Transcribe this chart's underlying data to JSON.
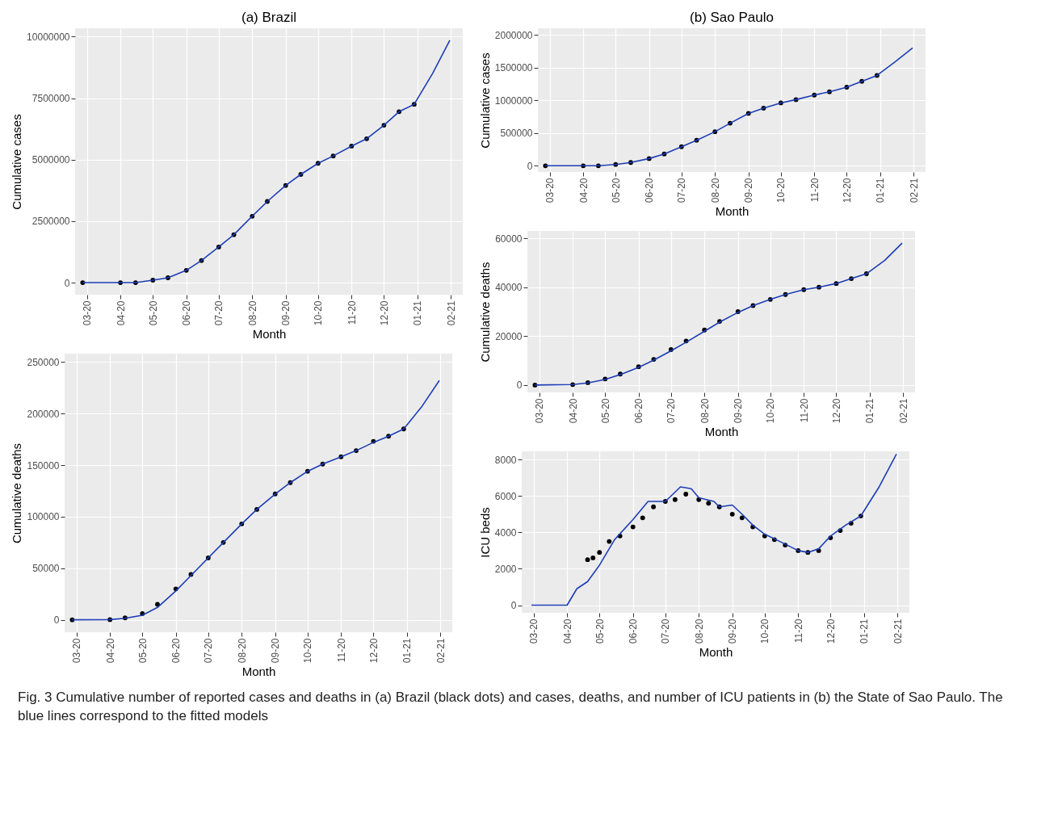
{
  "chart_data": [
    {
      "type": "scatter",
      "title": "(a) Brazil",
      "xlabel": "Month",
      "ylabel": "Cumulative cases",
      "grid": true,
      "xlim": [
        "2020-02-19",
        "2021-02-12"
      ],
      "ylim": [
        -490000,
        10340000
      ],
      "xticks": [
        {
          "value": "2020-03-01",
          "label": "03-20"
        },
        {
          "value": "2020-04-01",
          "label": "04-20"
        },
        {
          "value": "2020-05-01",
          "label": "05-20"
        },
        {
          "value": "2020-06-01",
          "label": "06-20"
        },
        {
          "value": "2020-07-01",
          "label": "07-20"
        },
        {
          "value": "2020-08-01",
          "label": "08-20"
        },
        {
          "value": "2020-09-01",
          "label": "09-20"
        },
        {
          "value": "2020-10-01",
          "label": "10-20"
        },
        {
          "value": "2020-11-01",
          "label": "11-20"
        },
        {
          "value": "2020-12-01",
          "label": "12-20"
        },
        {
          "value": "2021-01-01",
          "label": "01-21"
        },
        {
          "value": "2021-02-01",
          "label": "02-21"
        }
      ],
      "yticks": [
        0,
        2500000,
        5000000,
        7500000,
        10000000
      ],
      "series": [
        {
          "type": "scatter",
          "color": "#000000",
          "x": [
            "2020-02-26",
            "2020-04-01",
            "2020-04-15",
            "2020-05-01",
            "2020-05-15",
            "2020-06-01",
            "2020-06-15",
            "2020-07-01",
            "2020-07-15",
            "2020-08-01",
            "2020-08-15",
            "2020-09-01",
            "2020-09-15",
            "2020-10-01",
            "2020-10-15",
            "2020-11-01",
            "2020-11-15",
            "2020-12-01",
            "2020-12-15",
            "2020-12-29"
          ],
          "values": [
            0,
            0,
            0,
            100000,
            200000,
            500000,
            900000,
            1450000,
            1950000,
            2700000,
            3300000,
            3950000,
            4400000,
            4850000,
            5150000,
            5550000,
            5850000,
            6400000,
            6950000,
            7250000
          ]
        },
        {
          "type": "line",
          "color": "#1d3db5",
          "x": [
            "2020-02-26",
            "2020-04-01",
            "2020-04-15",
            "2020-05-01",
            "2020-05-15",
            "2020-06-01",
            "2020-06-15",
            "2020-07-01",
            "2020-07-15",
            "2020-08-01",
            "2020-08-15",
            "2020-09-01",
            "2020-09-15",
            "2020-10-01",
            "2020-10-15",
            "2020-11-01",
            "2020-11-15",
            "2020-12-01",
            "2020-12-15",
            "2020-12-29",
            "2021-01-15",
            "2021-01-31"
          ],
          "values": [
            0,
            0,
            0,
            100000,
            200000,
            500000,
            900000,
            1450000,
            1950000,
            2700000,
            3300000,
            3950000,
            4400000,
            4850000,
            5150000,
            5550000,
            5850000,
            6400000,
            6950000,
            7250000,
            8500000,
            9850000
          ]
        }
      ]
    },
    {
      "type": "scatter",
      "xlabel": "Month",
      "ylabel": "Cumulative deaths",
      "grid": true,
      "xlim": [
        "2020-02-19",
        "2021-02-12"
      ],
      "ylim": [
        -12000,
        258000
      ],
      "xticks": [
        {
          "value": "2020-03-01",
          "label": "03-20"
        },
        {
          "value": "2020-04-01",
          "label": "04-20"
        },
        {
          "value": "2020-05-01",
          "label": "05-20"
        },
        {
          "value": "2020-06-01",
          "label": "06-20"
        },
        {
          "value": "2020-07-01",
          "label": "07-20"
        },
        {
          "value": "2020-08-01",
          "label": "08-20"
        },
        {
          "value": "2020-09-01",
          "label": "09-20"
        },
        {
          "value": "2020-10-01",
          "label": "10-20"
        },
        {
          "value": "2020-11-01",
          "label": "11-20"
        },
        {
          "value": "2020-12-01",
          "label": "12-20"
        },
        {
          "value": "2021-01-01",
          "label": "01-21"
        },
        {
          "value": "2021-02-01",
          "label": "02-21"
        }
      ],
      "yticks": [
        0,
        50000,
        100000,
        150000,
        200000,
        250000
      ],
      "series": [
        {
          "type": "scatter",
          "color": "#000000",
          "x": [
            "2020-02-26",
            "2020-04-01",
            "2020-04-15",
            "2020-05-01",
            "2020-05-15",
            "2020-06-01",
            "2020-06-15",
            "2020-07-01",
            "2020-07-15",
            "2020-08-01",
            "2020-08-15",
            "2020-09-01",
            "2020-09-15",
            "2020-10-01",
            "2020-10-15",
            "2020-11-01",
            "2020-11-15",
            "2020-12-01",
            "2020-12-15",
            "2020-12-29"
          ],
          "values": [
            0,
            200,
            1900,
            6000,
            15000,
            30000,
            44000,
            60000,
            75000,
            93000,
            107000,
            122000,
            133000,
            144000,
            151000,
            158000,
            164000,
            173000,
            178000,
            185000
          ]
        },
        {
          "type": "line",
          "color": "#1d3db5",
          "x": [
            "2020-02-26",
            "2020-04-01",
            "2020-04-15",
            "2020-05-01",
            "2020-05-15",
            "2020-06-01",
            "2020-06-15",
            "2020-07-01",
            "2020-07-15",
            "2020-08-01",
            "2020-08-15",
            "2020-09-01",
            "2020-09-15",
            "2020-10-01",
            "2020-10-15",
            "2020-11-01",
            "2020-11-15",
            "2020-12-01",
            "2020-12-15",
            "2020-12-29",
            "2021-01-15",
            "2021-01-31"
          ],
          "values": [
            0,
            200,
            1500,
            4500,
            12000,
            28000,
            43000,
            60000,
            75000,
            93000,
            107000,
            122000,
            133000,
            144000,
            151000,
            158000,
            164000,
            172000,
            178000,
            185000,
            207000,
            232000
          ]
        }
      ]
    },
    {
      "type": "scatter",
      "title": "(b) Sao Paulo",
      "xlabel": "Month",
      "ylabel": "Cumulative cases",
      "grid": true,
      "xlim": [
        "2020-02-19",
        "2021-02-12"
      ],
      "ylim": [
        -95000,
        2100000
      ],
      "xticks": [
        {
          "value": "2020-03-01",
          "label": "03-20"
        },
        {
          "value": "2020-04-01",
          "label": "04-20"
        },
        {
          "value": "2020-05-01",
          "label": "05-20"
        },
        {
          "value": "2020-06-01",
          "label": "06-20"
        },
        {
          "value": "2020-07-01",
          "label": "07-20"
        },
        {
          "value": "2020-08-01",
          "label": "08-20"
        },
        {
          "value": "2020-09-01",
          "label": "09-20"
        },
        {
          "value": "2020-10-01",
          "label": "10-20"
        },
        {
          "value": "2020-11-01",
          "label": "11-20"
        },
        {
          "value": "2020-12-01",
          "label": "12-20"
        },
        {
          "value": "2021-01-01",
          "label": "01-21"
        },
        {
          "value": "2021-02-01",
          "label": "02-21"
        }
      ],
      "yticks": [
        0,
        500000,
        1000000,
        1500000,
        2000000
      ],
      "series": [
        {
          "type": "scatter",
          "color": "#000000",
          "x": [
            "2020-02-26",
            "2020-04-01",
            "2020-04-15",
            "2020-05-01",
            "2020-05-15",
            "2020-06-01",
            "2020-06-15",
            "2020-07-01",
            "2020-07-15",
            "2020-08-01",
            "2020-08-15",
            "2020-09-01",
            "2020-09-15",
            "2020-10-01",
            "2020-10-15",
            "2020-11-01",
            "2020-11-15",
            "2020-12-01",
            "2020-12-15",
            "2020-12-29"
          ],
          "values": [
            0,
            0,
            0,
            20000,
            50000,
            110000,
            180000,
            290000,
            390000,
            520000,
            650000,
            800000,
            880000,
            960000,
            1010000,
            1080000,
            1130000,
            1200000,
            1290000,
            1380000
          ]
        },
        {
          "type": "line",
          "color": "#1d3db5",
          "x": [
            "2020-02-26",
            "2020-04-01",
            "2020-04-15",
            "2020-05-01",
            "2020-05-15",
            "2020-06-01",
            "2020-06-15",
            "2020-07-01",
            "2020-07-15",
            "2020-08-01",
            "2020-08-15",
            "2020-09-01",
            "2020-09-15",
            "2020-10-01",
            "2020-10-15",
            "2020-11-01",
            "2020-11-15",
            "2020-12-01",
            "2020-12-15",
            "2020-12-29",
            "2021-01-15",
            "2021-01-31"
          ],
          "values": [
            0,
            0,
            0,
            20000,
            50000,
            110000,
            180000,
            290000,
            390000,
            520000,
            650000,
            800000,
            880000,
            960000,
            1010000,
            1080000,
            1130000,
            1200000,
            1290000,
            1380000,
            1590000,
            1800000
          ]
        }
      ]
    },
    {
      "type": "scatter",
      "xlabel": "Month",
      "ylabel": "Cumulative deaths",
      "grid": true,
      "xlim": [
        "2020-02-19",
        "2021-02-12"
      ],
      "ylim": [
        -3000,
        63000
      ],
      "xticks": [
        {
          "value": "2020-03-01",
          "label": "03-20"
        },
        {
          "value": "2020-04-01",
          "label": "04-20"
        },
        {
          "value": "2020-05-01",
          "label": "05-20"
        },
        {
          "value": "2020-06-01",
          "label": "06-20"
        },
        {
          "value": "2020-07-01",
          "label": "07-20"
        },
        {
          "value": "2020-08-01",
          "label": "08-20"
        },
        {
          "value": "2020-09-01",
          "label": "09-20"
        },
        {
          "value": "2020-10-01",
          "label": "10-20"
        },
        {
          "value": "2020-11-01",
          "label": "11-20"
        },
        {
          "value": "2020-12-01",
          "label": "12-20"
        },
        {
          "value": "2021-01-01",
          "label": "01-21"
        },
        {
          "value": "2021-02-01",
          "label": "02-21"
        }
      ],
      "yticks": [
        0,
        20000,
        40000,
        60000
      ],
      "series": [
        {
          "type": "scatter",
          "color": "#000000",
          "x": [
            "2020-02-26",
            "2020-04-01",
            "2020-04-15",
            "2020-05-01",
            "2020-05-15",
            "2020-06-01",
            "2020-06-15",
            "2020-07-01",
            "2020-07-15",
            "2020-08-01",
            "2020-08-15",
            "2020-09-01",
            "2020-09-15",
            "2020-10-01",
            "2020-10-15",
            "2020-11-01",
            "2020-11-15",
            "2020-12-01",
            "2020-12-15",
            "2020-12-29"
          ],
          "values": [
            0,
            200,
            1000,
            2500,
            4500,
            7500,
            10500,
            14500,
            18000,
            22500,
            26000,
            30000,
            32500,
            35000,
            37000,
            39000,
            40000,
            41500,
            43500,
            45500
          ]
        },
        {
          "type": "line",
          "color": "#1d3db5",
          "x": [
            "2020-02-26",
            "2020-04-01",
            "2020-04-15",
            "2020-05-01",
            "2020-05-15",
            "2020-06-01",
            "2020-06-15",
            "2020-07-01",
            "2020-07-15",
            "2020-08-01",
            "2020-08-15",
            "2020-09-01",
            "2020-09-15",
            "2020-10-01",
            "2020-10-15",
            "2020-11-01",
            "2020-11-15",
            "2020-12-01",
            "2020-12-15",
            "2020-12-29",
            "2021-01-15",
            "2021-01-31"
          ],
          "values": [
            0,
            200,
            900,
            2300,
            4300,
            7200,
            10200,
            14000,
            17500,
            22000,
            25700,
            29700,
            32500,
            35000,
            37000,
            39000,
            40000,
            41500,
            43500,
            45500,
            51000,
            58000
          ]
        }
      ]
    },
    {
      "type": "scatter",
      "xlabel": "Month",
      "ylabel": "ICU beds",
      "grid": true,
      "xlim": [
        "2020-02-19",
        "2021-02-12"
      ],
      "ylim": [
        -420,
        8450
      ],
      "xticks": [
        {
          "value": "2020-03-01",
          "label": "03-20"
        },
        {
          "value": "2020-04-01",
          "label": "04-20"
        },
        {
          "value": "2020-05-01",
          "label": "05-20"
        },
        {
          "value": "2020-06-01",
          "label": "06-20"
        },
        {
          "value": "2020-07-01",
          "label": "07-20"
        },
        {
          "value": "2020-08-01",
          "label": "08-20"
        },
        {
          "value": "2020-09-01",
          "label": "09-20"
        },
        {
          "value": "2020-10-01",
          "label": "10-20"
        },
        {
          "value": "2020-11-01",
          "label": "11-20"
        },
        {
          "value": "2020-12-01",
          "label": "12-20"
        },
        {
          "value": "2021-01-01",
          "label": "01-21"
        },
        {
          "value": "2021-02-01",
          "label": "02-21"
        }
      ],
      "yticks": [
        0,
        2000,
        4000,
        6000,
        8000
      ],
      "annotations": [
        "Fig. 3  Cumulative number of reported cases and deaths in (a) Brazil (black dots) and cases, deaths, and number of ICU patients in (b) the State of Sao Paulo. The blue lines correspond to the fitted models"
      ],
      "series": [
        {
          "type": "scatter",
          "color": "#000000",
          "x": [
            "2020-04-20",
            "2020-04-25",
            "2020-05-01",
            "2020-05-10",
            "2020-05-20",
            "2020-06-01",
            "2020-06-10",
            "2020-06-20",
            "2020-07-01",
            "2020-07-10",
            "2020-07-20",
            "2020-08-01",
            "2020-08-10",
            "2020-08-20",
            "2020-09-01",
            "2020-09-10",
            "2020-09-20",
            "2020-10-01",
            "2020-10-10",
            "2020-10-20",
            "2020-11-01",
            "2020-11-10",
            "2020-11-20",
            "2020-12-01",
            "2020-12-10",
            "2020-12-20",
            "2020-12-29"
          ],
          "values": [
            2500,
            2600,
            2900,
            3500,
            3800,
            4300,
            4800,
            5400,
            5700,
            5800,
            6100,
            5800,
            5600,
            5400,
            5000,
            4800,
            4300,
            3800,
            3600,
            3300,
            3000,
            2900,
            3000,
            3700,
            4100,
            4500,
            4900
          ]
        },
        {
          "type": "line",
          "color": "#1d3db5",
          "x": [
            "2020-02-28",
            "2020-04-01",
            "2020-04-10",
            "2020-04-20",
            "2020-05-01",
            "2020-05-15",
            "2020-06-01",
            "2020-06-15",
            "2020-07-01",
            "2020-07-15",
            "2020-07-25",
            "2020-08-01",
            "2020-08-15",
            "2020-08-20",
            "2020-09-01",
            "2020-09-10",
            "2020-09-20",
            "2020-10-01",
            "2020-10-15",
            "2020-11-01",
            "2020-11-10",
            "2020-11-20",
            "2020-12-01",
            "2020-12-15",
            "2020-12-29",
            "2021-01-15",
            "2021-01-31"
          ],
          "values": [
            0,
            0,
            900,
            1300,
            2200,
            3600,
            4700,
            5700,
            5700,
            6500,
            6400,
            5900,
            5700,
            5400,
            5500,
            5000,
            4400,
            3900,
            3500,
            3000,
            2900,
            3100,
            3800,
            4400,
            4900,
            6500,
            8300
          ]
        }
      ]
    }
  ]
}
